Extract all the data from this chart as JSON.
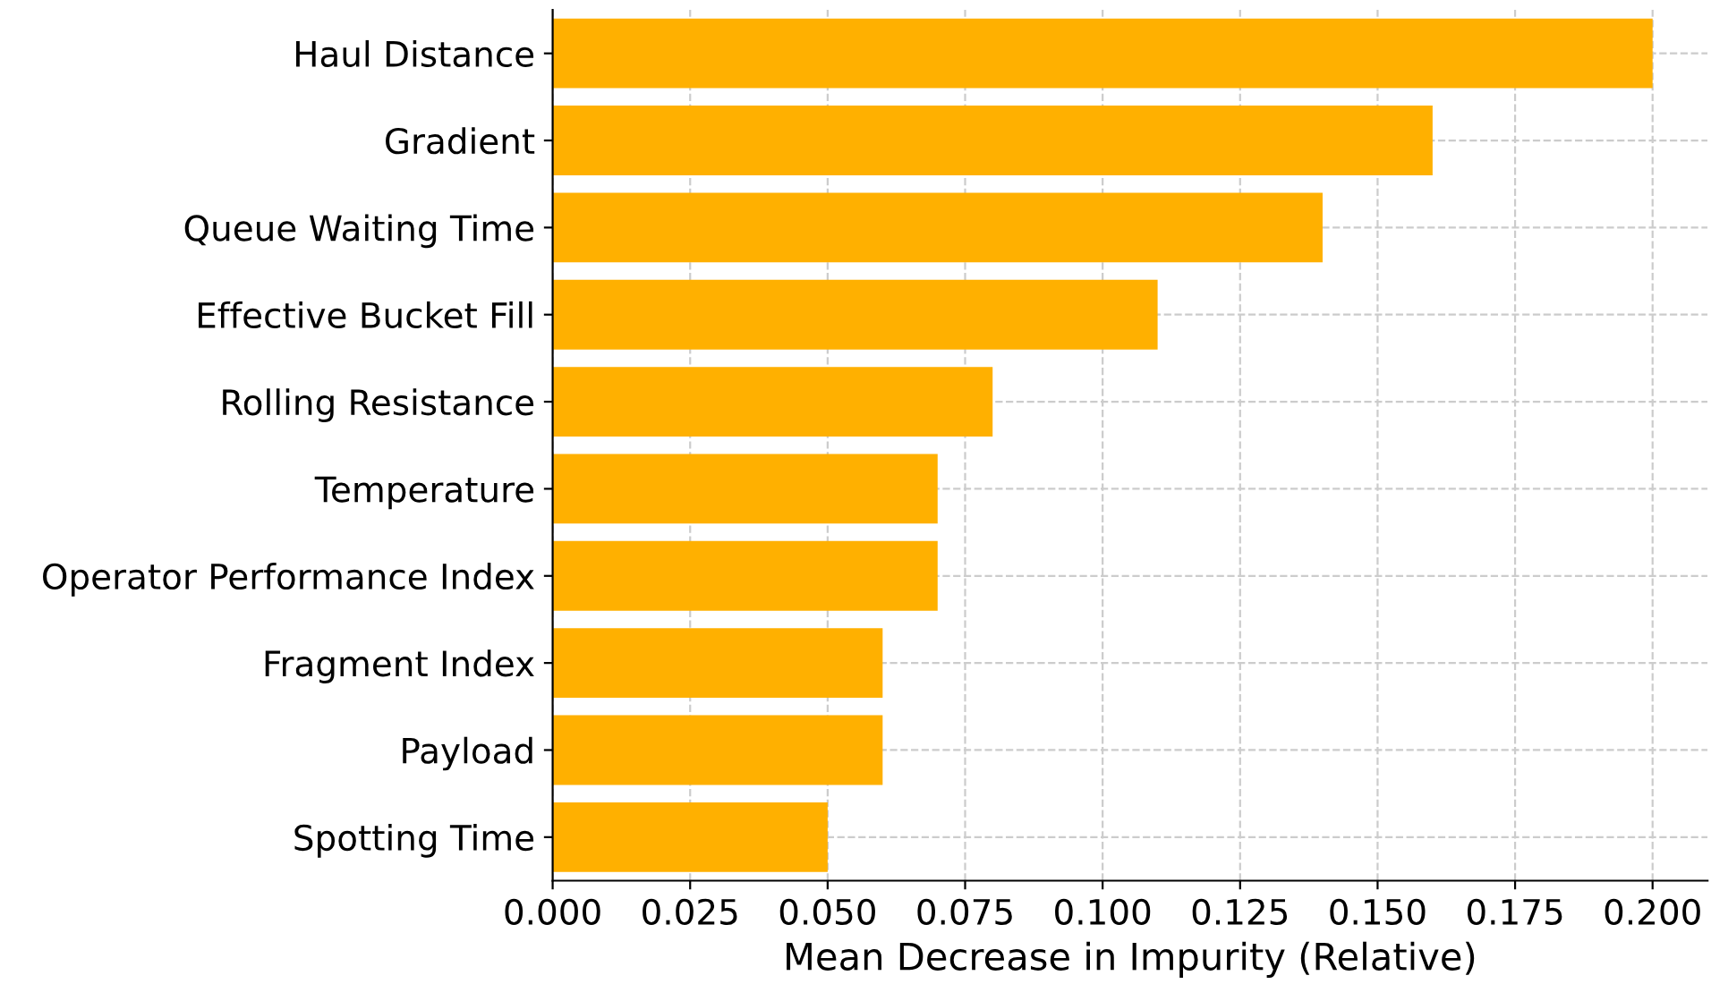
{
  "chart_data": {
    "type": "bar",
    "orientation": "horizontal",
    "xlabel": "Mean Decrease in Impurity (Relative)",
    "categories": [
      "Haul Distance",
      "Gradient",
      "Queue Waiting Time",
      "Effective Bucket Fill",
      "Rolling Resistance",
      "Temperature",
      "Operator Performance Index",
      "Fragment Index",
      "Payload",
      "Spotting Time"
    ],
    "values": [
      0.2,
      0.16,
      0.14,
      0.11,
      0.08,
      0.07,
      0.07,
      0.06,
      0.06,
      0.05
    ],
    "color": "#ffb000",
    "xlim": [
      0,
      0.21
    ],
    "xticks": [
      {
        "value": 0,
        "label": "0.000"
      },
      {
        "value": 0.025,
        "label": "0.025"
      },
      {
        "value": 0.05,
        "label": "0.050"
      },
      {
        "value": 0.075,
        "label": "0.075"
      },
      {
        "value": 0.1,
        "label": "0.100"
      },
      {
        "value": 0.125,
        "label": "0.125"
      },
      {
        "value": 0.15,
        "label": "0.150"
      },
      {
        "value": 0.175,
        "label": "0.175"
      },
      {
        "value": 0.2,
        "label": "0.200"
      }
    ],
    "grid": true
  }
}
